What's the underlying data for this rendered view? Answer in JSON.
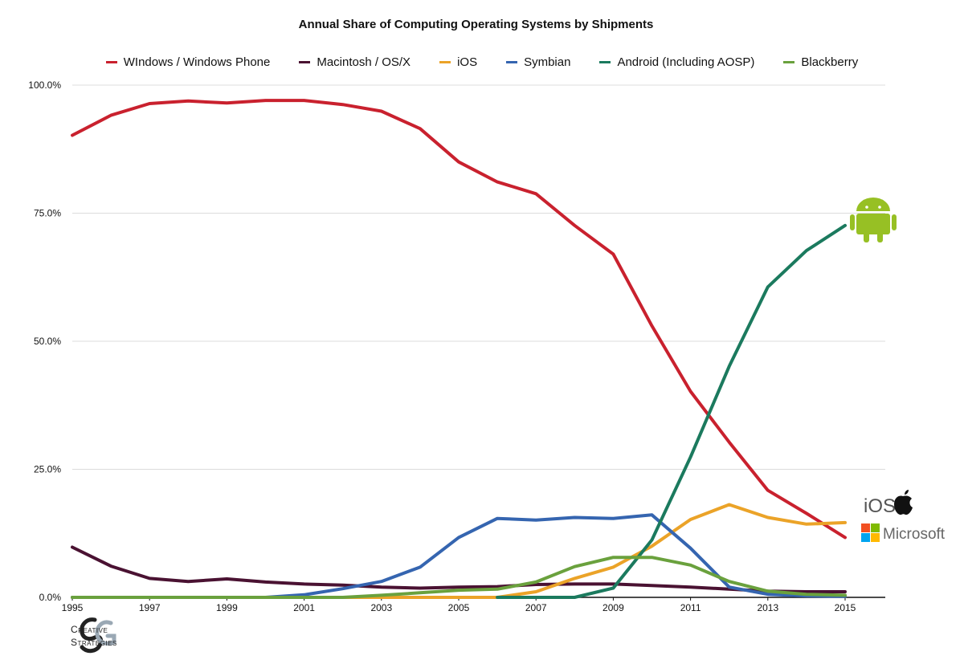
{
  "chart_data": {
    "type": "line",
    "title": "Annual Share of Computing Operating Systems by Shipments",
    "xlabel": "",
    "ylabel": "",
    "ylim": [
      0,
      100
    ],
    "xlim": [
      1995,
      2015
    ],
    "y_ticks": [
      "0.0%",
      "25.0%",
      "50.0%",
      "75.0%",
      "100.0%"
    ],
    "y_tick_values": [
      0,
      25,
      50,
      75,
      100
    ],
    "x_ticks": [
      "1995",
      "1997",
      "1999",
      "2001",
      "2003",
      "2005",
      "2007",
      "2009",
      "2011",
      "2013",
      "2015"
    ],
    "x_tick_values": [
      1995,
      1997,
      1999,
      2001,
      2003,
      2005,
      2007,
      2009,
      2011,
      2013,
      2015
    ],
    "legend_position": "top",
    "grid": true,
    "x": [
      1995,
      1996,
      1997,
      1998,
      1999,
      2000,
      2001,
      2002,
      2003,
      2004,
      2005,
      2006,
      2007,
      2008,
      2009,
      2010,
      2011,
      2012,
      2013,
      2014,
      2015
    ],
    "series": [
      {
        "name": "WIndows / Windows Phone",
        "color": "#c9212e",
        "values": [
          90.2,
          94.1,
          96.4,
          96.9,
          96.5,
          97.0,
          97.0,
          96.2,
          94.9,
          91.5,
          85.0,
          81.1,
          78.8,
          72.6,
          67.0,
          53.0,
          40.2,
          30.3,
          20.9,
          16.4,
          11.7
        ]
      },
      {
        "name": "Macintosh / OS/X",
        "color": "#4a1232",
        "values": [
          9.8,
          6.1,
          3.7,
          3.1,
          3.6,
          3.0,
          2.6,
          2.4,
          2.0,
          1.8,
          2.0,
          2.1,
          2.5,
          2.6,
          2.6,
          2.3,
          2.0,
          1.6,
          1.2,
          1.1,
          1.1
        ]
      },
      {
        "name": "iOS",
        "color": "#eba328",
        "values": [
          0,
          0,
          0,
          0,
          0,
          0,
          0,
          0,
          0,
          0,
          0,
          0,
          1.1,
          3.7,
          5.9,
          10.0,
          15.2,
          18.1,
          15.6,
          14.3,
          14.6
        ]
      },
      {
        "name": "Symbian",
        "color": "#3565b0",
        "values": [
          0,
          0,
          0,
          0,
          0,
          0,
          0.5,
          1.7,
          3.1,
          5.9,
          11.7,
          15.4,
          15.1,
          15.6,
          15.4,
          16.1,
          9.6,
          2.0,
          0.6,
          0.3,
          0.2
        ]
      },
      {
        "name": "Android (Including AOSP)",
        "color": "#1b7a5e",
        "values": [
          null,
          null,
          null,
          null,
          null,
          null,
          null,
          null,
          null,
          null,
          null,
          0,
          0,
          0,
          1.8,
          11.2,
          27.4,
          45.1,
          60.6,
          67.7,
          72.6
        ]
      },
      {
        "name": "Blackberry",
        "color": "#6aa13d",
        "values": [
          0,
          0,
          0,
          0,
          0,
          0,
          0,
          0,
          0.4,
          0.9,
          1.4,
          1.6,
          3.0,
          6.0,
          7.8,
          7.8,
          6.3,
          3.1,
          1.2,
          0.6,
          0.4
        ]
      }
    ],
    "annotations": {
      "ios_logo_text": "iOS",
      "microsoft_logo_text": "Microsoft"
    }
  },
  "footer": {
    "brand_line1": "Creative",
    "brand_line2": "Strategies"
  }
}
